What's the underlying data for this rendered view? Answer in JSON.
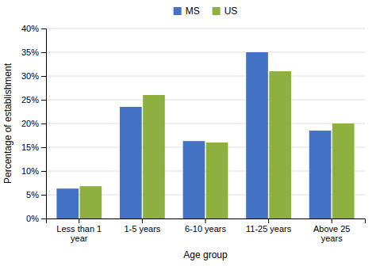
{
  "chart_data": {
    "type": "bar",
    "xlabel": "Age group",
    "ylabel": "Percentage of establishment",
    "categories": [
      "Less than 1\nyear",
      "1-5 years",
      "6-10 years",
      "11-25 years",
      "Above 25\nyears"
    ],
    "series": [
      {
        "name": "MS",
        "color": "#4472C4",
        "values": [
          6.3,
          23.5,
          16.3,
          35.0,
          18.5
        ]
      },
      {
        "name": "US",
        "color": "#8DB040",
        "values": [
          6.8,
          26.0,
          16.0,
          31.0,
          20.0
        ]
      }
    ],
    "ylim": [
      0,
      40
    ],
    "yticks": [
      {
        "value": 0,
        "label": "0%"
      },
      {
        "value": 5,
        "label": "5%"
      },
      {
        "value": 10,
        "label": "10%"
      },
      {
        "value": 15,
        "label": "15%"
      },
      {
        "value": 20,
        "label": "20%"
      },
      {
        "value": 25,
        "label": "25%"
      },
      {
        "value": 30,
        "label": "30%"
      },
      {
        "value": 35,
        "label": "35%"
      },
      {
        "value": 40,
        "label": "40%"
      }
    ],
    "grid": true,
    "legend": "top"
  }
}
